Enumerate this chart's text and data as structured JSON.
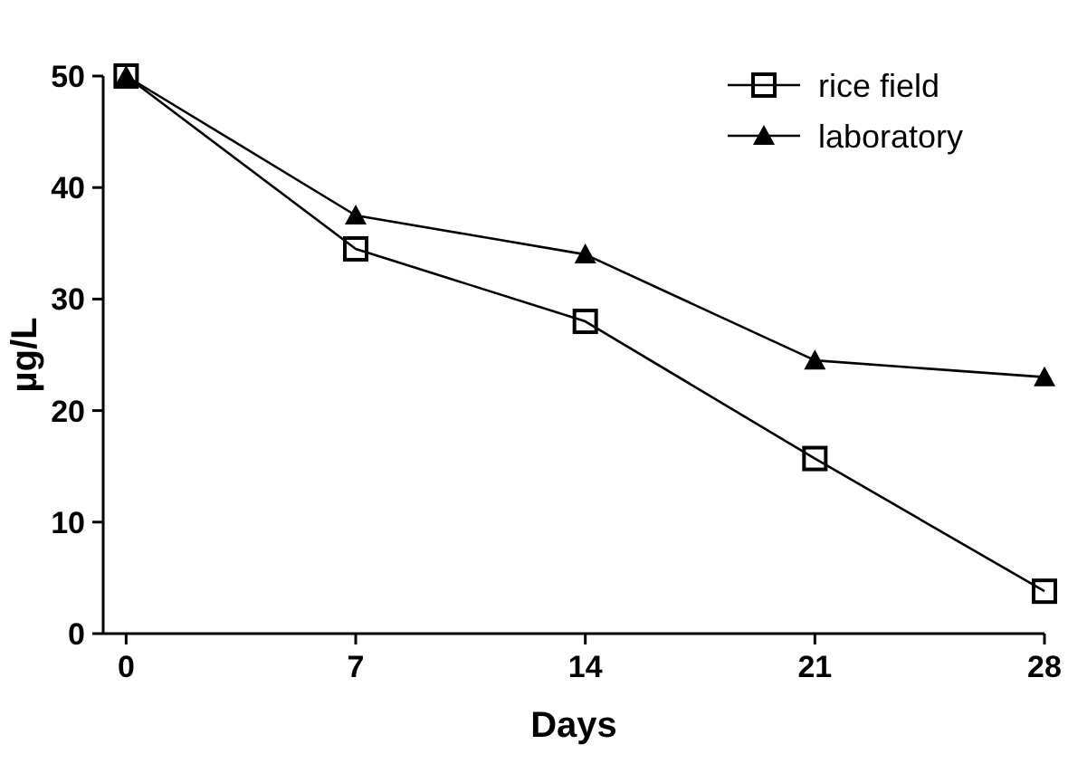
{
  "chart_data": {
    "type": "line",
    "xlabel": "Days",
    "ylabel": "µg/L",
    "x": [
      0,
      7,
      14,
      21,
      28
    ],
    "xlim": [
      -0.7,
      28
    ],
    "xticks": [
      0,
      7,
      14,
      21,
      28
    ],
    "ylim": [
      0,
      50
    ],
    "yticks": [
      0,
      10,
      20,
      30,
      40,
      50
    ],
    "grid": false,
    "legend": "top right",
    "series": [
      {
        "name": "rice field",
        "color": "#000000",
        "marker": "square",
        "values": [
          50,
          34.5,
          28,
          15.7,
          3.8
        ]
      },
      {
        "name": "laboratory",
        "color": "#000000",
        "marker": "triangle",
        "values": [
          50,
          37.5,
          34,
          24.5,
          23
        ]
      }
    ]
  }
}
